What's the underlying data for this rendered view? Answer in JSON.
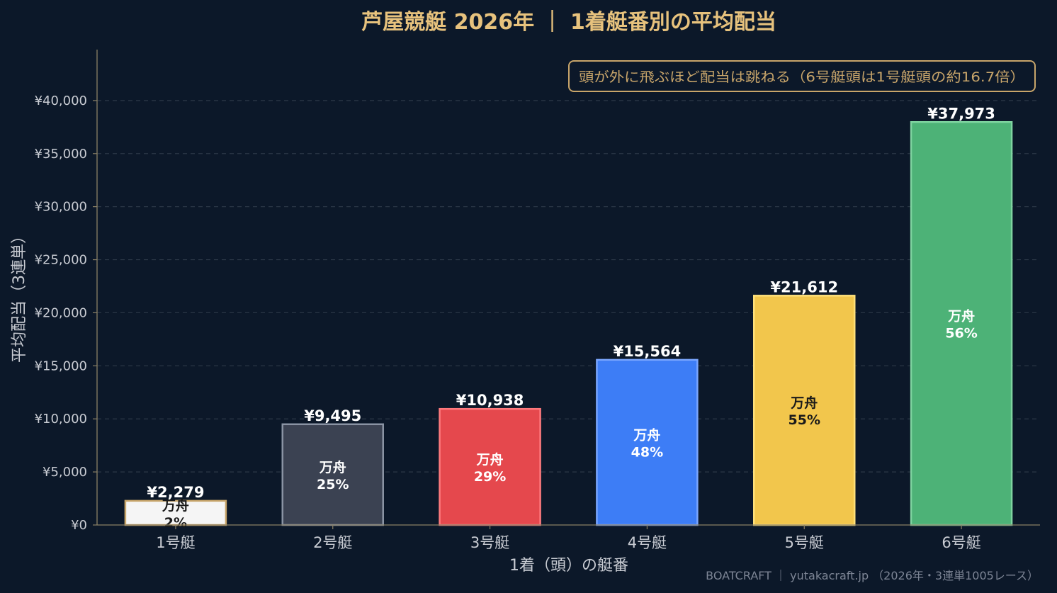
{
  "chart_data": {
    "type": "bar",
    "title": "芦屋競艇 2026年 ｜ 1着艇番別の平均配当",
    "xlabel": "1着（頭）の艇番",
    "ylabel": "平均配当（3連単）",
    "categories": [
      "1号艇",
      "2号艇",
      "3号艇",
      "4号艇",
      "5号艇",
      "6号艇"
    ],
    "values": [
      2279,
      9495,
      10938,
      15564,
      21612,
      37973
    ],
    "value_labels": [
      "¥2,279",
      "¥9,495",
      "¥10,938",
      "¥15,564",
      "¥21,612",
      "¥37,973"
    ],
    "inner_labels": [
      {
        "line1": "万舟",
        "line2": "2%"
      },
      {
        "line1": "万舟",
        "line2": "25%"
      },
      {
        "line1": "万舟",
        "line2": "29%"
      },
      {
        "line1": "万舟",
        "line2": "48%"
      },
      {
        "line1": "万舟",
        "line2": "55%"
      },
      {
        "line1": "万舟",
        "line2": "56%"
      }
    ],
    "manshu_percent": [
      2,
      25,
      29,
      48,
      55,
      56
    ],
    "bar_colors": [
      "#f5f5f5",
      "#3b4252",
      "#e5484d",
      "#3d7df6",
      "#f2c64c",
      "#4db277"
    ],
    "bar_edge_colors": [
      "#c8a56a",
      "#8a93a3",
      "#ff7a7e",
      "#7aa6ff",
      "#ffe07a",
      "#7fd4a0"
    ],
    "inner_label_colors": [
      "#1a1a1a",
      "#ffffff",
      "#ffffff",
      "#ffffff",
      "#1a1a1a",
      "#ffffff"
    ],
    "yticks": [
      0,
      5000,
      10000,
      15000,
      20000,
      25000,
      30000,
      35000,
      40000
    ],
    "ytick_labels": [
      "¥0",
      "¥5,000",
      "¥10,000",
      "¥15,000",
      "¥20,000",
      "¥25,000",
      "¥30,000",
      "¥35,000",
      "¥40,000"
    ],
    "ylim": [
      0,
      44800
    ],
    "grid": true,
    "annotation": "頭が外に飛ぶほど配当は跳ねる（6号艇頭は1号艇頭の約16.7倍）",
    "annotation_position": "top-right"
  },
  "footer": "BOATCRAFT ｜ yutakacraft.jp （2026年・3連単1005レース）",
  "colors": {
    "background": "#0c1829",
    "title": "#e7c27d",
    "grid": "#2c3848",
    "axis": "#8a8066",
    "annotation": "#c8a56a"
  }
}
